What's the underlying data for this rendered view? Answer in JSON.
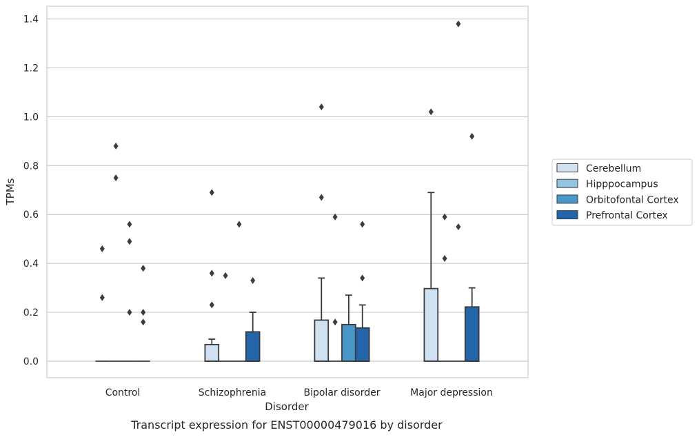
{
  "chart_data": {
    "type": "box",
    "caption": "Transcript expression for ENST00000479016 by disorder",
    "xlabel": "Disorder",
    "ylabel": "TPMs",
    "ylim": [
      -0.068,
      1.45
    ],
    "yticks": [
      "0.0",
      "0.2",
      "0.4",
      "0.6",
      "0.8",
      "1.0",
      "1.2",
      "1.4"
    ],
    "grid": "horizontal",
    "legend_position": "right",
    "categories": [
      "Control",
      "Schizophrenia",
      "Bipolar disorder",
      "Major depression"
    ],
    "series": [
      {
        "name": "Cerebellum",
        "color": "#d0e1f2",
        "boxes": [
          {
            "q1": 0,
            "median": 0,
            "q3": 0,
            "whisker_low": 0,
            "whisker_high": 0,
            "outliers": [
              0.26,
              0.46
            ]
          },
          {
            "q1": 0,
            "median": 0,
            "q3": 0.068,
            "whisker_low": 0,
            "whisker_high": 0.09,
            "outliers": [
              0.23,
              0.36,
              0.69
            ]
          },
          {
            "q1": 0,
            "median": 0,
            "q3": 0.168,
            "whisker_low": 0,
            "whisker_high": 0.34,
            "outliers": [
              0.67,
              1.04
            ]
          },
          {
            "q1": 0,
            "median": 0,
            "q3": 0.297,
            "whisker_low": 0,
            "whisker_high": 0.69,
            "outliers": [
              1.02
            ]
          }
        ]
      },
      {
        "name": "Hipppocampus",
        "color": "#94c4df",
        "boxes": [
          {
            "q1": 0,
            "median": 0,
            "q3": 0,
            "whisker_low": 0,
            "whisker_high": 0,
            "outliers": [
              0.75,
              0.88
            ]
          },
          {
            "q1": 0,
            "median": 0,
            "q3": 0,
            "whisker_low": 0,
            "whisker_high": 0,
            "outliers": [
              0.35
            ]
          },
          {
            "q1": 0,
            "median": 0,
            "q3": 0,
            "whisker_low": 0,
            "whisker_high": 0,
            "outliers": [
              0.16,
              0.59
            ]
          },
          {
            "q1": 0,
            "median": 0,
            "q3": 0,
            "whisker_low": 0,
            "whisker_high": 0,
            "outliers": [
              0.42,
              0.59
            ]
          }
        ]
      },
      {
        "name": "Orbitofontal Cortex",
        "color": "#4a98c9",
        "boxes": [
          {
            "q1": 0,
            "median": 0,
            "q3": 0,
            "whisker_low": 0,
            "whisker_high": 0,
            "outliers": [
              0.2,
              0.49,
              0.56
            ]
          },
          {
            "q1": 0,
            "median": 0,
            "q3": 0,
            "whisker_low": 0,
            "whisker_high": 0,
            "outliers": [
              0.56
            ]
          },
          {
            "q1": 0,
            "median": 0,
            "q3": 0.15,
            "whisker_low": 0,
            "whisker_high": 0.27,
            "outliers": []
          },
          {
            "q1": 0,
            "median": 0,
            "q3": 0,
            "whisker_low": 0,
            "whisker_high": 0,
            "outliers": [
              0.55,
              1.38
            ]
          }
        ]
      },
      {
        "name": "Prefrontal Cortex",
        "color": "#2464a8",
        "boxes": [
          {
            "q1": 0,
            "median": 0,
            "q3": 0,
            "whisker_low": 0,
            "whisker_high": 0,
            "outliers": [
              0.16,
              0.2,
              0.38
            ]
          },
          {
            "q1": 0,
            "median": 0,
            "q3": 0.12,
            "whisker_low": 0,
            "whisker_high": 0.2,
            "outliers": [
              0.33
            ]
          },
          {
            "q1": 0,
            "median": 0,
            "q3": 0.136,
            "whisker_low": 0,
            "whisker_high": 0.23,
            "outliers": [
              0.34,
              0.56
            ]
          },
          {
            "q1": 0,
            "median": 0,
            "q3": 0.222,
            "whisker_low": 0,
            "whisker_high": 0.3,
            "outliers": [
              0.92
            ]
          }
        ]
      }
    ]
  }
}
